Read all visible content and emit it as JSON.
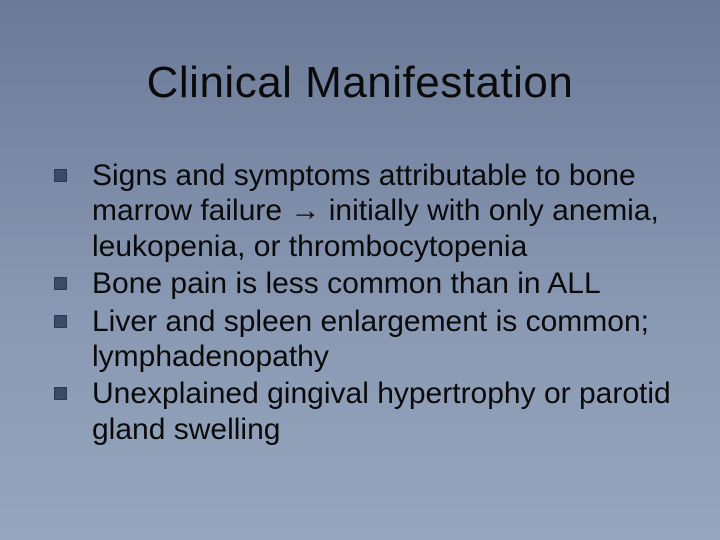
{
  "slide": {
    "title": "Clinical Manifestation",
    "background_gradient": [
      "#6b7a96",
      "#7a8aa6",
      "#8a9ab4",
      "#96a5bd"
    ],
    "title_fontsize": 44,
    "title_color": "#0a0a0a",
    "body_fontsize": 30,
    "body_color": "#0a0a0a",
    "bullet_marker_color": "#3a4a68",
    "bullet_marker_size": 13,
    "bullets": [
      "Signs and symptoms attributable to bone marrow failure → initially with only anemia, leukopenia, or thrombocytopenia",
      "Bone pain is less common than in ALL",
      "Liver and spleen enlargement is common; lymphadenopathy",
      "Unexplained gingival hypertrophy or parotid gland swelling"
    ]
  }
}
